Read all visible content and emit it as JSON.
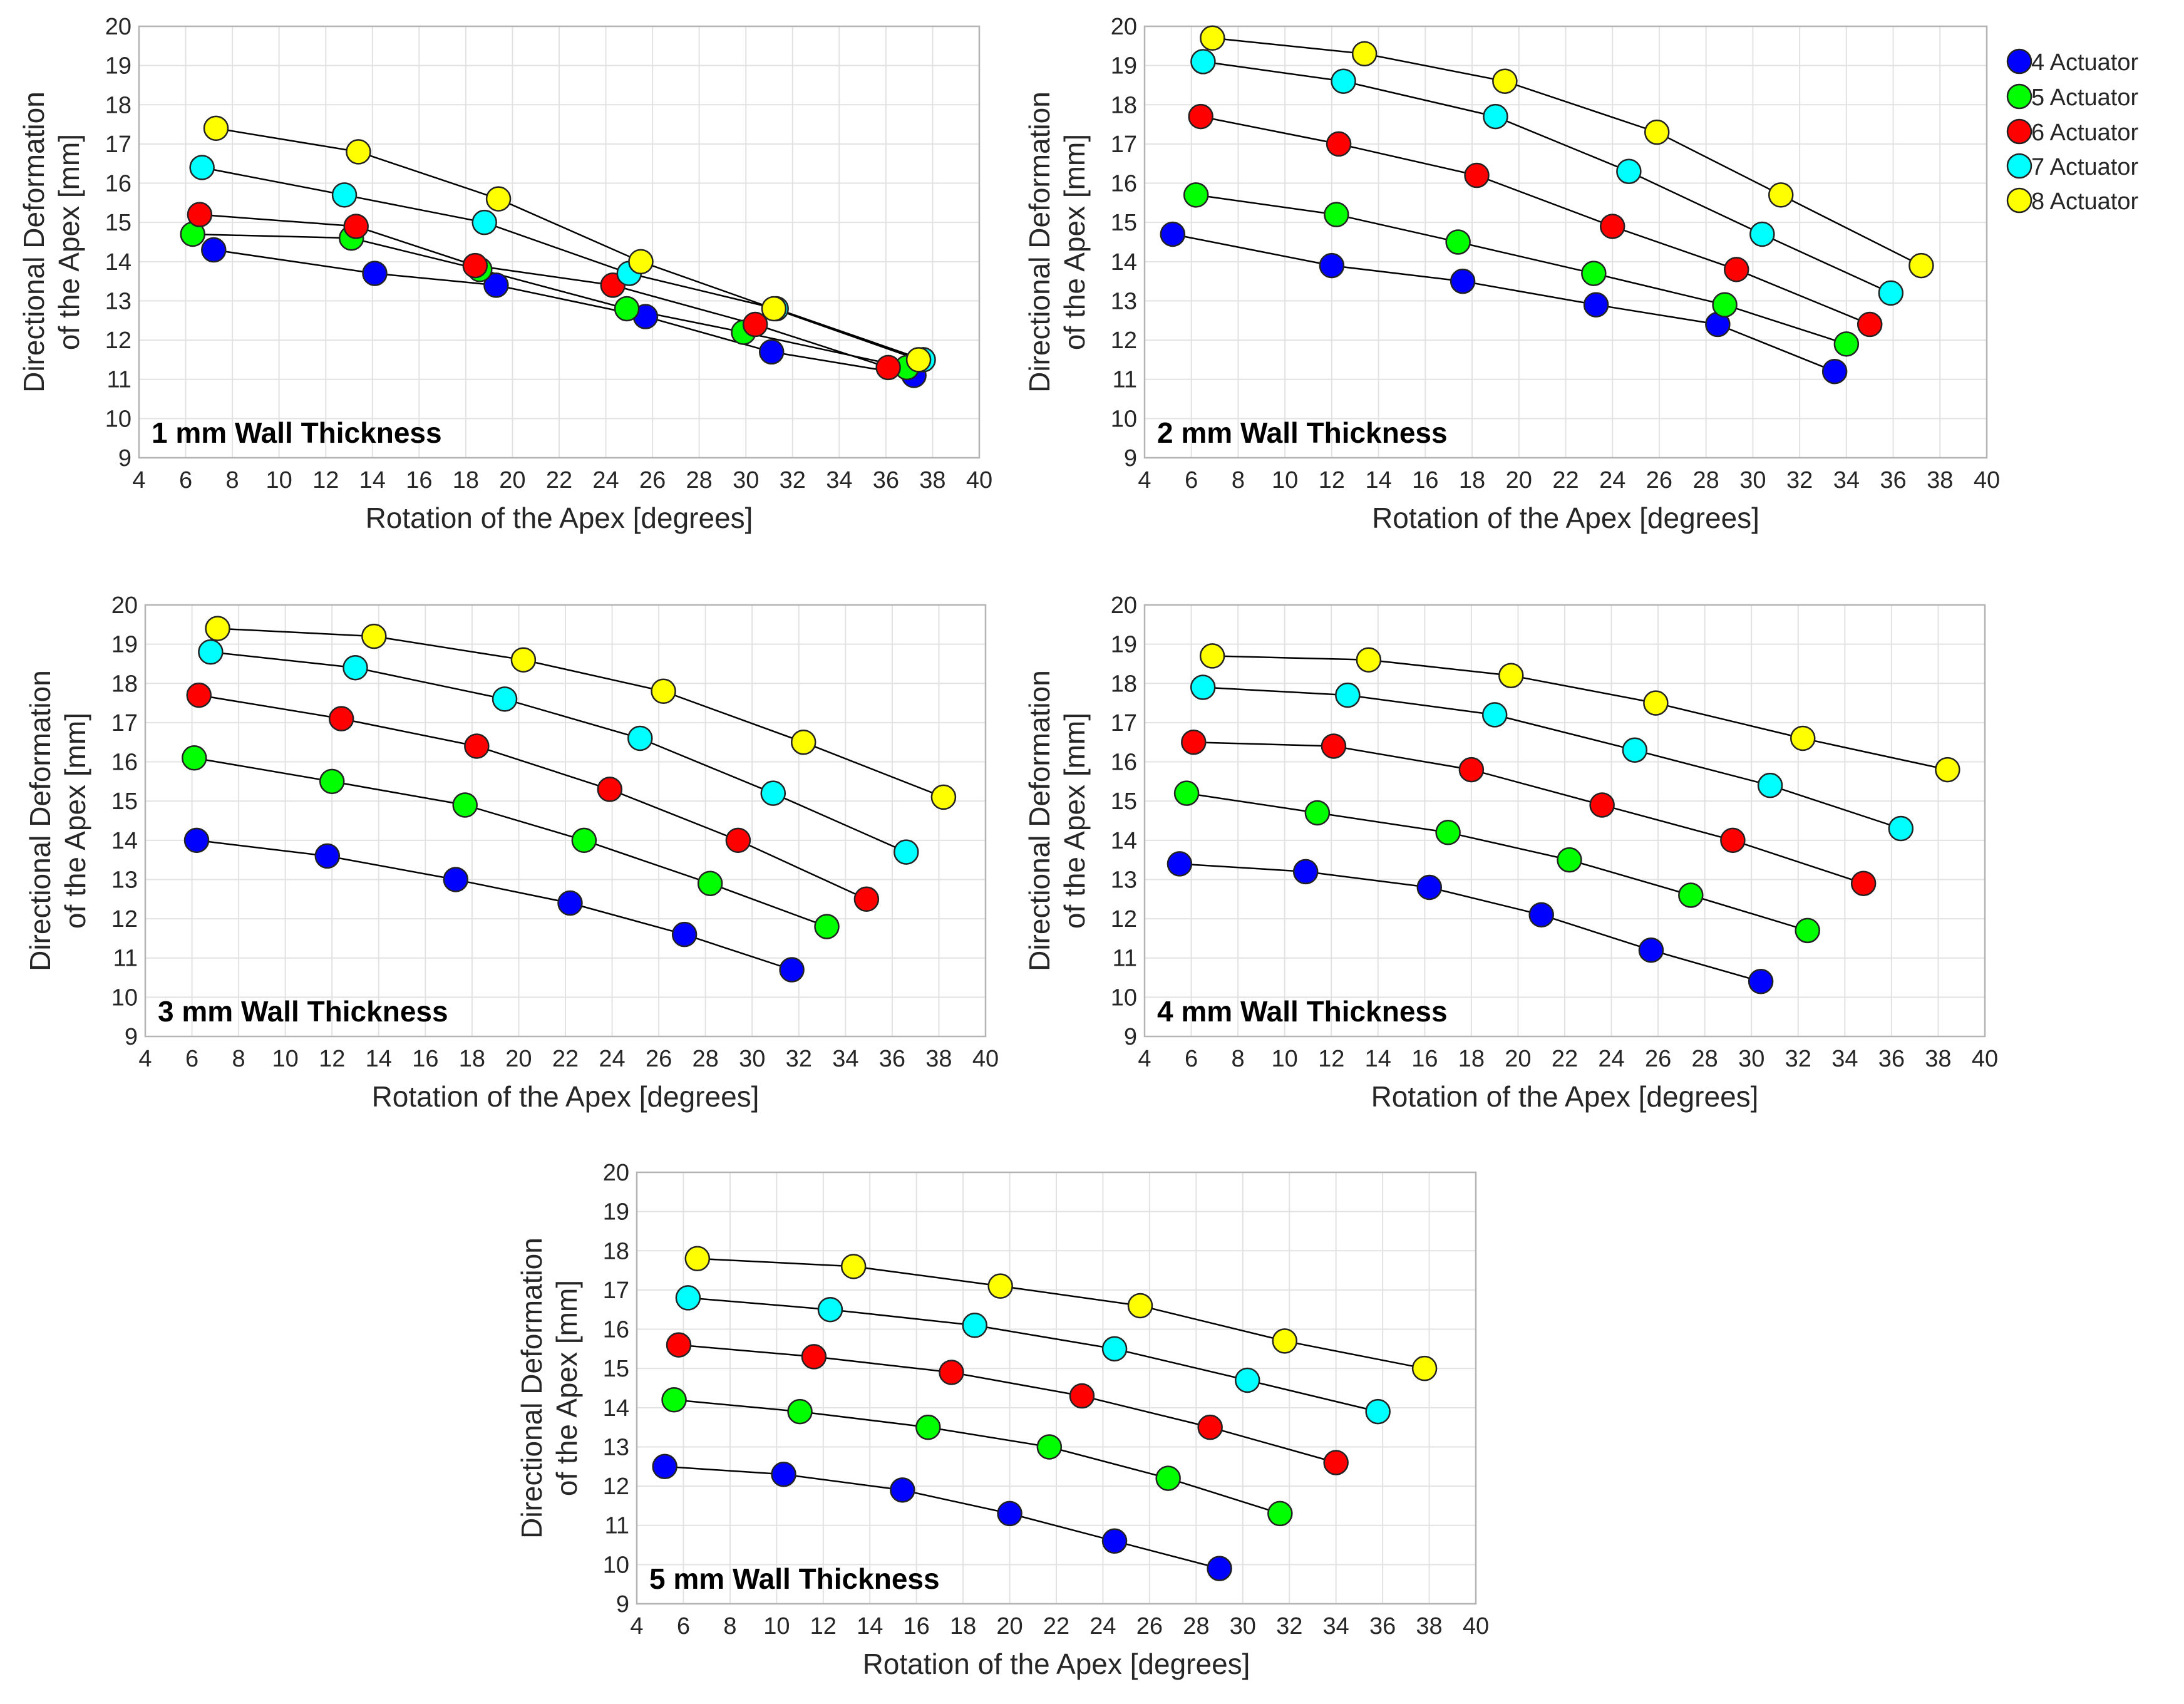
{
  "legend": [
    {
      "label": "4 Actuator",
      "color": "#0000ff"
    },
    {
      "label": "5 Actuator",
      "color": "#00ff00"
    },
    {
      "label": "6 Actuator",
      "color": "#ff0000"
    },
    {
      "label": "7 Actuator",
      "color": "#00ffff"
    },
    {
      "label": "8 Actuator",
      "color": "#ffff00"
    }
  ],
  "chart_data": [
    {
      "type": "line",
      "title": "1 mm Wall Thickness",
      "xlabel": "Rotation of the Apex [degrees]",
      "ylabel": [
        "Directional Deformation",
        "of the Apex [mm]"
      ],
      "xlim": [
        4,
        40
      ],
      "ylim": [
        9,
        20
      ],
      "xticks": [
        4,
        6,
        8,
        10,
        12,
        14,
        16,
        18,
        20,
        22,
        24,
        26,
        28,
        30,
        32,
        34,
        36,
        38,
        40
      ],
      "yticks": [
        9,
        10,
        11,
        12,
        13,
        14,
        15,
        16,
        17,
        18,
        19,
        20
      ],
      "grid": true,
      "series": [
        {
          "name": "4 Actuator",
          "x": [
            7.2,
            14.1,
            19.3,
            25.7,
            31.1,
            37.2
          ],
          "y": [
            14.3,
            13.7,
            13.4,
            12.6,
            11.7,
            11.1
          ]
        },
        {
          "name": "5 Actuator",
          "x": [
            6.3,
            13.1,
            18.6,
            24.9,
            29.9,
            36.9
          ],
          "y": [
            14.7,
            14.6,
            13.8,
            12.8,
            12.2,
            11.3
          ]
        },
        {
          "name": "6 Actuator",
          "x": [
            6.6,
            13.3,
            18.4,
            24.3,
            30.4,
            36.1
          ],
          "y": [
            15.2,
            14.9,
            13.9,
            13.4,
            12.4,
            11.3
          ]
        },
        {
          "name": "7 Actuator",
          "x": [
            6.7,
            12.8,
            18.8,
            25.0,
            31.3,
            37.6
          ],
          "y": [
            16.4,
            15.7,
            15.0,
            13.7,
            12.8,
            11.5
          ]
        },
        {
          "name": "8 Actuator",
          "x": [
            7.3,
            13.4,
            19.4,
            25.5,
            31.2,
            37.4
          ],
          "y": [
            17.4,
            16.8,
            15.6,
            14.0,
            12.8,
            11.5
          ]
        }
      ]
    },
    {
      "type": "line",
      "title": "2 mm Wall Thickness",
      "xlabel": "Rotation of the Apex [degrees]",
      "ylabel": [
        "Directional Deformation",
        "of the Apex [mm]"
      ],
      "xlim": [
        4,
        40
      ],
      "ylim": [
        9,
        20
      ],
      "xticks": [
        4,
        6,
        8,
        10,
        12,
        14,
        16,
        18,
        20,
        22,
        24,
        26,
        28,
        30,
        32,
        34,
        36,
        38,
        40
      ],
      "yticks": [
        9,
        10,
        11,
        12,
        13,
        14,
        15,
        16,
        17,
        18,
        19,
        20
      ],
      "grid": true,
      "series": [
        {
          "name": "4 Actuator",
          "x": [
            5.2,
            12.0,
            17.6,
            23.3,
            28.5,
            33.5
          ],
          "y": [
            14.7,
            13.9,
            13.5,
            12.9,
            12.4,
            11.2
          ]
        },
        {
          "name": "5 Actuator",
          "x": [
            6.2,
            12.2,
            17.4,
            23.2,
            28.8,
            34.0
          ],
          "y": [
            15.7,
            15.2,
            14.5,
            13.7,
            12.9,
            11.9
          ]
        },
        {
          "name": "6 Actuator",
          "x": [
            6.4,
            12.3,
            18.2,
            24.0,
            29.3,
            35.0
          ],
          "y": [
            17.7,
            17.0,
            16.2,
            14.9,
            13.8,
            12.4
          ]
        },
        {
          "name": "7 Actuator",
          "x": [
            6.5,
            12.5,
            19.0,
            24.7,
            30.4,
            35.9
          ],
          "y": [
            19.1,
            18.6,
            17.7,
            16.3,
            14.7,
            13.2
          ]
        },
        {
          "name": "8 Actuator",
          "x": [
            6.9,
            13.4,
            19.4,
            25.9,
            31.2,
            37.2
          ],
          "y": [
            19.7,
            19.3,
            18.6,
            17.3,
            15.7,
            13.9
          ]
        }
      ]
    },
    {
      "type": "line",
      "title": "3 mm Wall Thickness",
      "xlabel": "Rotation of the Apex [degrees]",
      "ylabel": [
        "Directional Deformation",
        "of the Apex [mm]"
      ],
      "xlim": [
        4,
        40
      ],
      "ylim": [
        9,
        20
      ],
      "xticks": [
        4,
        6,
        8,
        10,
        12,
        14,
        16,
        18,
        20,
        22,
        24,
        26,
        28,
        30,
        32,
        34,
        36,
        38,
        40
      ],
      "yticks": [
        9,
        10,
        11,
        12,
        13,
        14,
        15,
        16,
        17,
        18,
        19,
        20
      ],
      "grid": true,
      "series": [
        {
          "name": "4 Actuator",
          "x": [
            6.2,
            11.8,
            17.3,
            22.2,
            27.1,
            31.7
          ],
          "y": [
            14.0,
            13.6,
            13.0,
            12.4,
            11.6,
            10.7
          ]
        },
        {
          "name": "5 Actuator",
          "x": [
            6.1,
            12.0,
            17.7,
            22.8,
            28.2,
            33.2
          ],
          "y": [
            16.1,
            15.5,
            14.9,
            14.0,
            12.9,
            11.8
          ]
        },
        {
          "name": "6 Actuator",
          "x": [
            6.3,
            12.4,
            18.2,
            23.9,
            29.4,
            34.9
          ],
          "y": [
            17.7,
            17.1,
            16.4,
            15.3,
            14.0,
            12.5
          ]
        },
        {
          "name": "7 Actuator",
          "x": [
            6.8,
            13.0,
            19.4,
            25.2,
            30.9,
            36.6
          ],
          "y": [
            18.8,
            18.4,
            17.6,
            16.6,
            15.2,
            13.7
          ]
        },
        {
          "name": "8 Actuator",
          "x": [
            7.1,
            13.8,
            20.2,
            26.2,
            32.2,
            38.2
          ],
          "y": [
            19.4,
            19.2,
            18.6,
            17.8,
            16.5,
            15.1
          ]
        }
      ]
    },
    {
      "type": "line",
      "title": "4 mm Wall Thickness",
      "xlabel": "Rotation of the Apex [degrees]",
      "ylabel": [
        "Directional Deformation",
        "of the Apex [mm]"
      ],
      "xlim": [
        4,
        40
      ],
      "ylim": [
        9,
        20
      ],
      "xticks": [
        4,
        6,
        8,
        10,
        12,
        14,
        16,
        18,
        20,
        22,
        24,
        26,
        28,
        30,
        32,
        34,
        36,
        38,
        40
      ],
      "yticks": [
        9,
        10,
        11,
        12,
        13,
        14,
        15,
        16,
        17,
        18,
        19,
        20
      ],
      "grid": true,
      "series": [
        {
          "name": "4 Actuator",
          "x": [
            5.5,
            10.9,
            16.2,
            21.0,
            25.7,
            30.4
          ],
          "y": [
            13.4,
            13.2,
            12.8,
            12.1,
            11.2,
            10.4
          ]
        },
        {
          "name": "5 Actuator",
          "x": [
            5.8,
            11.4,
            17.0,
            22.2,
            27.4,
            32.4
          ],
          "y": [
            15.2,
            14.7,
            14.2,
            13.5,
            12.6,
            11.7
          ]
        },
        {
          "name": "6 Actuator",
          "x": [
            6.1,
            12.1,
            18.0,
            23.6,
            29.2,
            34.8
          ],
          "y": [
            16.5,
            16.4,
            15.8,
            14.9,
            14.0,
            12.9
          ]
        },
        {
          "name": "7 Actuator",
          "x": [
            6.5,
            12.7,
            19.0,
            25.0,
            30.8,
            36.4
          ],
          "y": [
            17.9,
            17.7,
            17.2,
            16.3,
            15.4,
            14.3
          ]
        },
        {
          "name": "8 Actuator",
          "x": [
            6.9,
            13.6,
            19.7,
            25.9,
            32.2,
            38.4
          ],
          "y": [
            18.7,
            18.6,
            18.2,
            17.5,
            16.6,
            15.8
          ]
        }
      ]
    },
    {
      "type": "line",
      "title": "5 mm Wall Thickness",
      "xlabel": "Rotation of the Apex [degrees]",
      "ylabel": [
        "Directional Deformation",
        "of the Apex [mm]"
      ],
      "xlim": [
        4,
        40
      ],
      "ylim": [
        9,
        20
      ],
      "xticks": [
        4,
        6,
        8,
        10,
        12,
        14,
        16,
        18,
        20,
        22,
        24,
        26,
        28,
        30,
        32,
        34,
        36,
        38,
        40
      ],
      "yticks": [
        9,
        10,
        11,
        12,
        13,
        14,
        15,
        16,
        17,
        18,
        19,
        20
      ],
      "grid": true,
      "series": [
        {
          "name": "4 Actuator",
          "x": [
            5.2,
            10.3,
            15.4,
            20.0,
            24.5,
            29.0
          ],
          "y": [
            12.5,
            12.3,
            11.9,
            11.3,
            10.6,
            9.9
          ]
        },
        {
          "name": "5 Actuator",
          "x": [
            5.6,
            11.0,
            16.5,
            21.7,
            26.8,
            31.6
          ],
          "y": [
            14.2,
            13.9,
            13.5,
            13.0,
            12.2,
            11.3
          ]
        },
        {
          "name": "6 Actuator",
          "x": [
            5.8,
            11.6,
            17.5,
            23.1,
            28.6,
            34.0
          ],
          "y": [
            15.6,
            15.3,
            14.9,
            14.3,
            13.5,
            12.6
          ]
        },
        {
          "name": "7 Actuator",
          "x": [
            6.2,
            12.3,
            18.5,
            24.5,
            30.2,
            35.8
          ],
          "y": [
            16.8,
            16.5,
            16.1,
            15.5,
            14.7,
            13.9
          ]
        },
        {
          "name": "8 Actuator",
          "x": [
            6.6,
            13.3,
            19.6,
            25.6,
            31.8,
            37.8
          ],
          "y": [
            17.8,
            17.6,
            17.1,
            16.6,
            15.7,
            15.0
          ]
        }
      ]
    }
  ]
}
